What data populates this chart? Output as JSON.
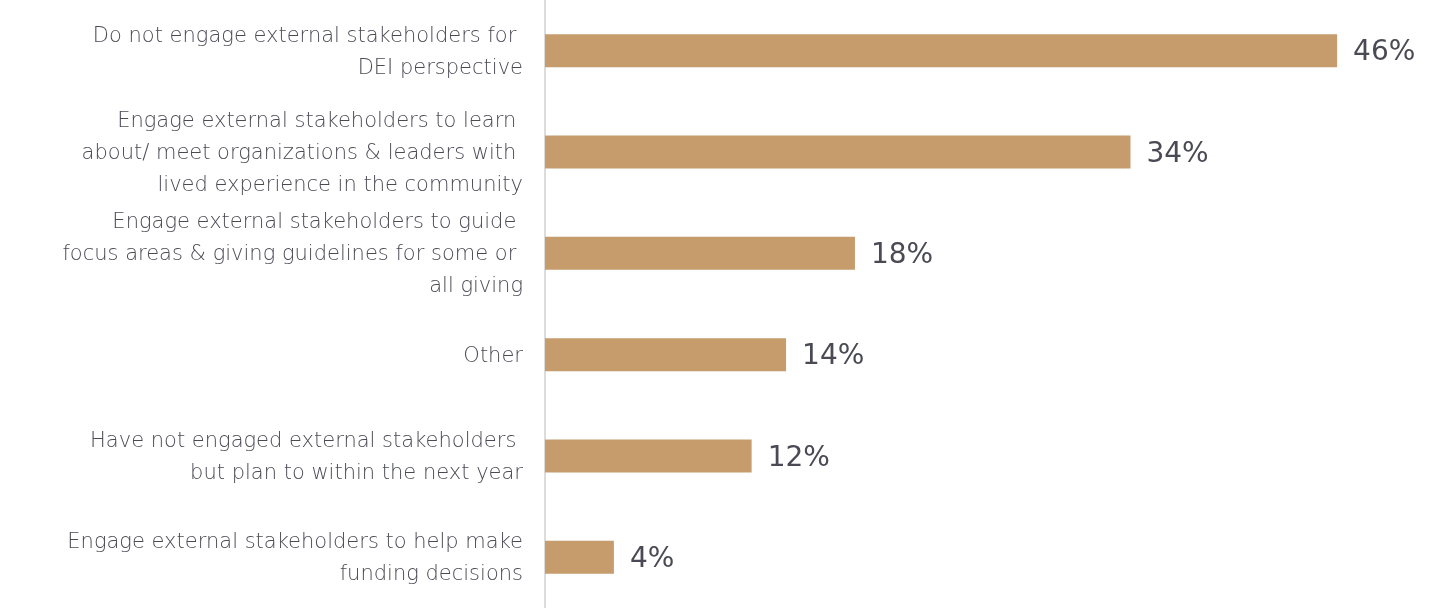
{
  "chart_data": {
    "type": "bar",
    "orientation": "horizontal",
    "categories": [
      "Do not engage external stakeholders for DEI perspective",
      "Engage external stakeholders to learn about/ meet organizations & leaders with lived experience in the community",
      "Engage external stakeholders to guide focus areas & giving guidelines for some or all giving",
      "Other",
      "Have not engaged external stakeholders but plan to within the next year",
      "Engage external stakeholders to help make funding decisions"
    ],
    "values": [
      46,
      34,
      18,
      14,
      12,
      4
    ],
    "value_labels": [
      "46%",
      "34%",
      "18%",
      "14%",
      "12%",
      "4%"
    ],
    "color": "#c69c6d"
  }
}
